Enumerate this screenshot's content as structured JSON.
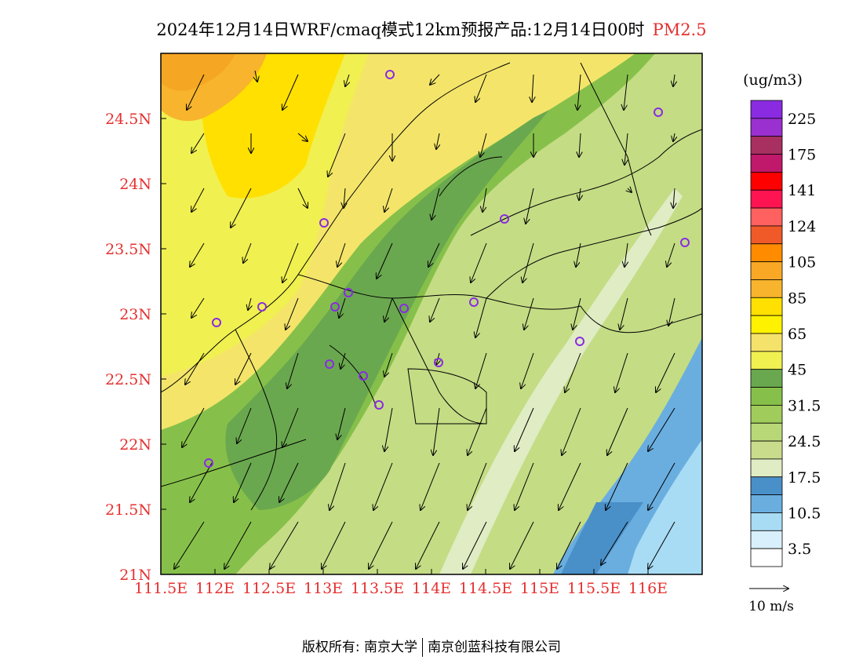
{
  "title": {
    "main": "2024年12月14日WRF/cmaq模式12km预报产品:12月14日00时",
    "pollutant": "PM2.5"
  },
  "axes": {
    "lat_ticks": [
      "24.5N",
      "24N",
      "23.5N",
      "23N",
      "22.5N",
      "22N",
      "21.5N",
      "21N"
    ],
    "lon_ticks": [
      "111.5E",
      "112E",
      "112.5E",
      "113E",
      "113.5E",
      "114E",
      "114.5E",
      "115E",
      "115.5E",
      "116E"
    ],
    "lat_range": [
      21,
      25
    ],
    "lon_range": [
      111.5,
      116.5
    ],
    "tick_color": "#e53030"
  },
  "legend": {
    "unit": "(ug/m3)",
    "labels": [
      "225",
      "175",
      "141",
      "124",
      "105",
      "85",
      "65",
      "45",
      "31.5",
      "24.5",
      "17.5",
      "10.5",
      "3.5"
    ],
    "colors_top_to_bottom": [
      "#8a2be2",
      "#9b30d0",
      "#a83060",
      "#c0186a",
      "#ff0000",
      "#ff1452",
      "#ff6060",
      "#f05a28",
      "#ff8c00",
      "#f9a825",
      "#f7b42c",
      "#ffe000",
      "#fff200",
      "#f5e26a",
      "#f0f050",
      "#6aa84f",
      "#86c04a",
      "#9fcc5a",
      "#b8d878",
      "#c8dc8c",
      "#e0ecc4",
      "#4a90c8",
      "#6aaee0",
      "#a8dcf4",
      "#d8f0fc",
      "#ffffff"
    ]
  },
  "wind_scale_label": "10 m/s",
  "footer": {
    "copyright": "版权所有: 南京大学",
    "company": "南京创蓝科技有限公司"
  }
}
